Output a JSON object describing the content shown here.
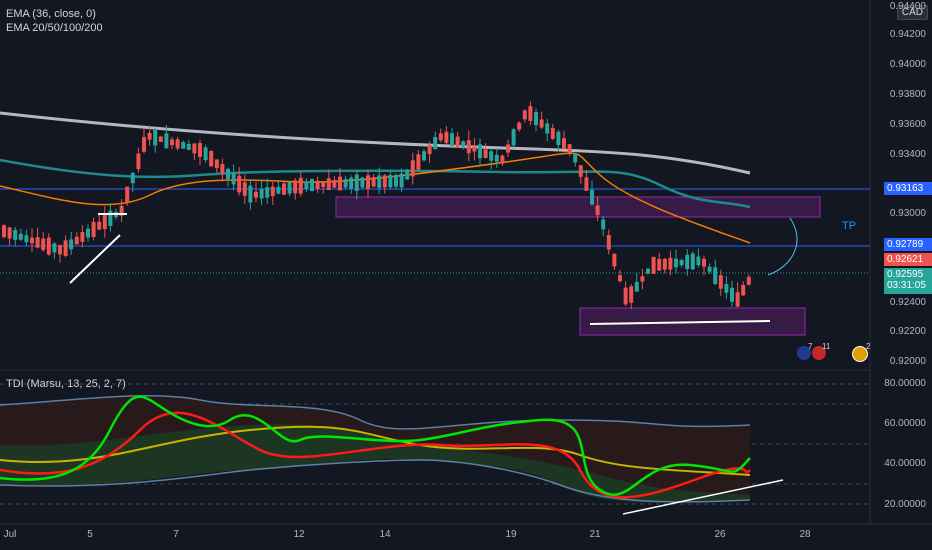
{
  "legend": {
    "ema1": "EMA (36, close, 0)",
    "ema2": "EMA 20/50/100/200",
    "tdi": "TDI (Marsu, 13, 25, 2, 7)"
  },
  "currency": "CAD",
  "price_axis": [
    "0.94400",
    "0.94200",
    "0.94000",
    "0.93800",
    "0.93600",
    "0.93400",
    "0.93000",
    "0.92400",
    "0.92200",
    "0.92000"
  ],
  "price_tags": {
    "upper": "0.93163",
    "mid": "0.92789",
    "red": "0.92621",
    "current": "0.92595",
    "countdown": "03:31:05"
  },
  "tdi_axis": [
    "80.00000",
    "60.00000",
    "40.00000",
    "20.00000"
  ],
  "x_axis": [
    "Jul",
    "5",
    "7",
    "12",
    "14",
    "19",
    "21",
    "26",
    "28"
  ],
  "annotations": {
    "tp": "TP"
  },
  "events": {
    "e1": "7",
    "e2": "11",
    "e3": "2"
  },
  "colors": {
    "bull": "#26a69a",
    "bear": "#ef5350",
    "blue_line": "#2962ff",
    "zone": "#9c27b0",
    "ema_orange": "#f57c00",
    "ema_teal": "#1f8a8a",
    "ema_white": "#d1d4dc",
    "tdi_green": "#00e600",
    "tdi_red": "#ff1a1a",
    "tdi_yellow": "#c8b400",
    "tdi_band": "#5b7fa6"
  }
}
